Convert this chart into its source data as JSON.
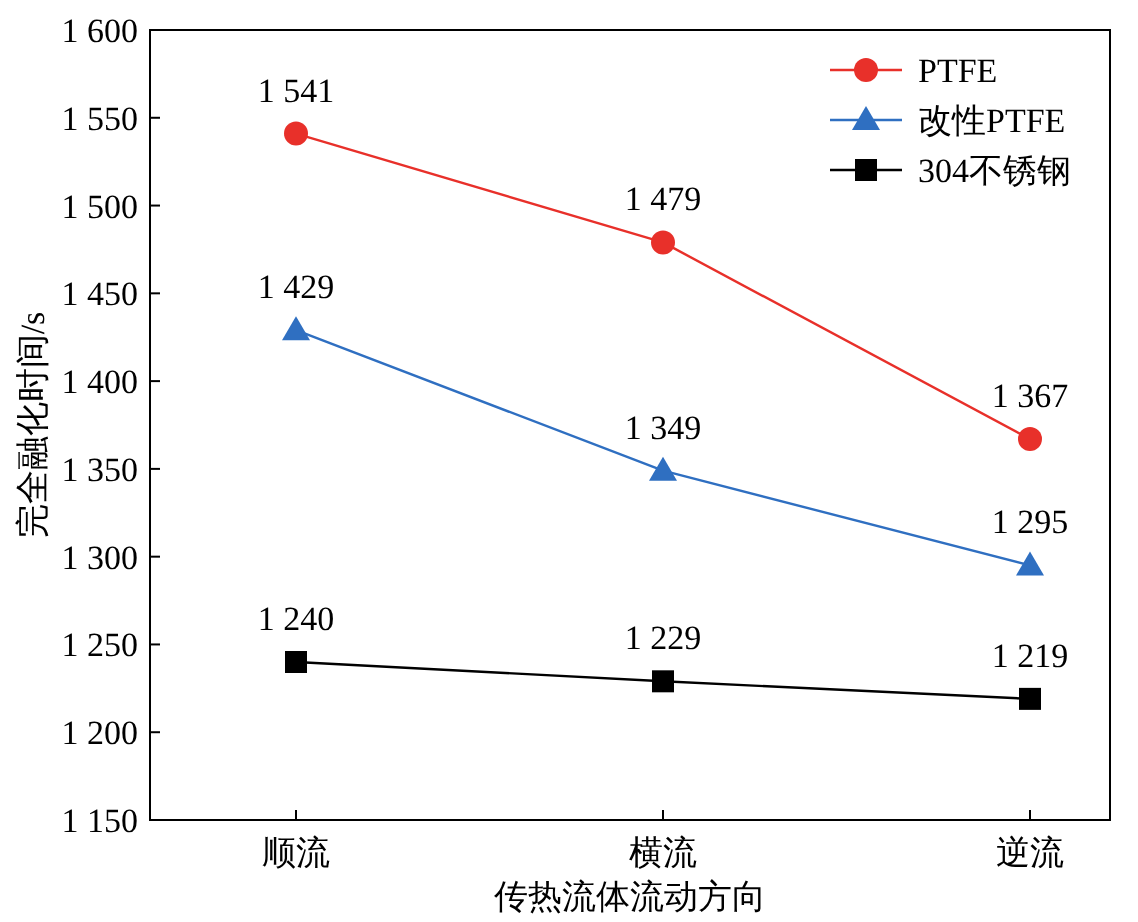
{
  "chart_data": {
    "type": "line",
    "xlabel": "传热流体流动方向",
    "ylabel": "完全融化时间/s",
    "categories": [
      "顺流",
      "横流",
      "逆流"
    ],
    "ylim": [
      1150,
      1600
    ],
    "yticks": [
      {
        "value": 1150,
        "label": "1 150"
      },
      {
        "value": 1200,
        "label": "1 200"
      },
      {
        "value": 1250,
        "label": "1 250"
      },
      {
        "value": 1300,
        "label": "1 300"
      },
      {
        "value": 1350,
        "label": "1 350"
      },
      {
        "value": 1400,
        "label": "1 400"
      },
      {
        "value": 1450,
        "label": "1 450"
      },
      {
        "value": 1500,
        "label": "1 500"
      },
      {
        "value": 1550,
        "label": "1 550"
      },
      {
        "value": 1600,
        "label": "1 600"
      }
    ],
    "grid": false,
    "legend": "top right",
    "line_style": "solid",
    "series": [
      {
        "name": "PTFE",
        "color": "#e8302a",
        "marker": "circle",
        "values": [
          1541,
          1479,
          1367
        ],
        "value_labels": [
          "1 541",
          "1 479",
          "1 367"
        ]
      },
      {
        "name": "改性PTFE",
        "color": "#2f6fc1",
        "marker": "triangle",
        "values": [
          1429,
          1349,
          1295
        ],
        "value_labels": [
          "1 429",
          "1 349",
          "1 295"
        ]
      },
      {
        "name": "304不锈钢",
        "color": "#000000",
        "marker": "square",
        "values": [
          1240,
          1229,
          1219
        ],
        "value_labels": [
          "1 240",
          "1 229",
          "1 219"
        ]
      }
    ]
  }
}
